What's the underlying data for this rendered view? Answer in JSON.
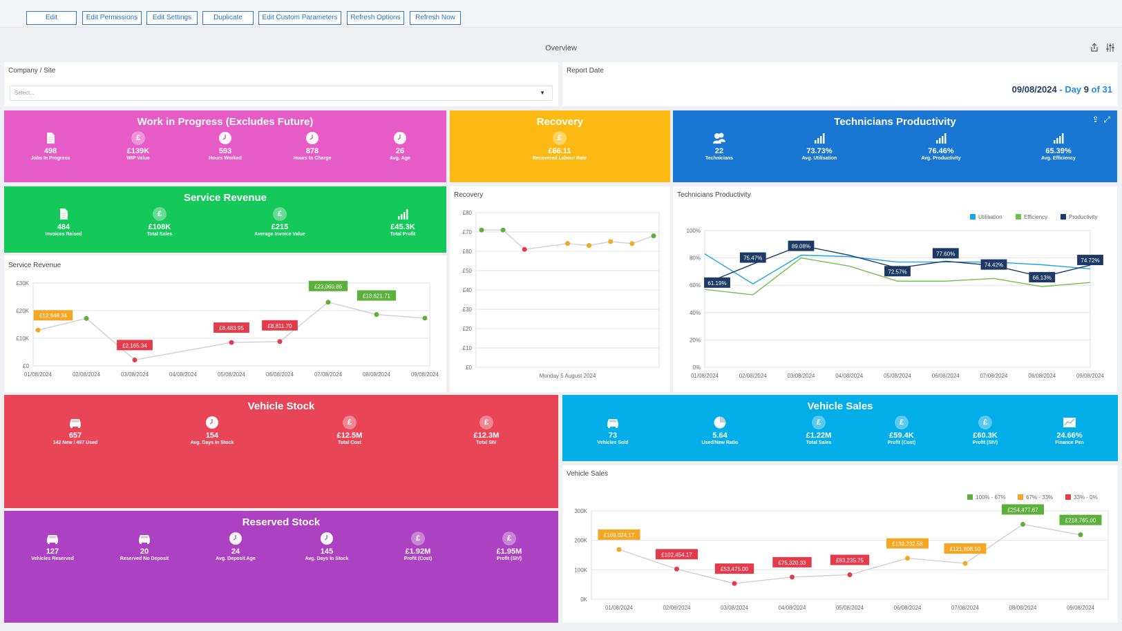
{
  "toolbar": {
    "buttons": [
      "Edit",
      "Edit Permissions",
      "Edit Settings",
      "Duplicate",
      "Edit Custom Parameters",
      "Refresh Options",
      "Refresh Now"
    ]
  },
  "overview": {
    "title": "Overview",
    "icons": [
      "share-icon",
      "settings-sliders-icon"
    ]
  },
  "filters": {
    "company_label": "Company / Site",
    "company_placeholder": "Select...",
    "report_date_label": "Report Date",
    "report_date": "09/08/2024",
    "day_word": "- Day",
    "day_num": "9",
    "of_word": "of 31"
  },
  "wip": {
    "title": "Work in Progress (Excludes Future)",
    "color": "#e65bc6",
    "stats": [
      {
        "value": "498",
        "label": "Jobs In Progress",
        "icon": "document-icon"
      },
      {
        "value": "£139K",
        "label": "WIP Value",
        "icon": "pound-icon"
      },
      {
        "value": "593",
        "label": "Hours Worked",
        "icon": "clock-icon"
      },
      {
        "value": "878",
        "label": "Hours to Charge",
        "icon": "clock-icon"
      },
      {
        "value": "26",
        "label": "Avg. Age",
        "icon": "clock-icon"
      }
    ]
  },
  "recovery": {
    "title": "Recovery",
    "color": "#fdb913",
    "stats": [
      {
        "value": "£66.11",
        "label": "Recovered Labour Rate",
        "icon": "pound-icon"
      }
    ]
  },
  "techprod": {
    "title": "Technicians Productivity",
    "color": "#1976d2",
    "stats": [
      {
        "value": "22",
        "label": "Technicians",
        "icon": "people-icon"
      },
      {
        "value": "73.73%",
        "label": "Avg. Utilisation",
        "icon": "bar-chart-icon"
      },
      {
        "value": "76.46%",
        "label": "Avg. Productivity",
        "icon": "bar-chart-icon"
      },
      {
        "value": "65.39%",
        "label": "Avg. Efficiency",
        "icon": "bar-chart-icon"
      }
    ]
  },
  "servrev": {
    "title": "Service Revenue",
    "color": "#14c85a",
    "stats": [
      {
        "value": "484",
        "label": "Invoices Raised",
        "icon": "document-icon"
      },
      {
        "value": "£108K",
        "label": "Total Sales",
        "icon": "pound-icon"
      },
      {
        "value": "£215",
        "label": "Average Invoice Value",
        "icon": "pound-icon"
      },
      {
        "value": "£45.3K",
        "label": "Total Profit",
        "icon": "bar-chart-icon"
      }
    ]
  },
  "vstock": {
    "title": "Vehicle Stock",
    "color": "#e84658",
    "stats": [
      {
        "value": "657",
        "label": "142 New / 497 Used",
        "icon": "car-icon"
      },
      {
        "value": "154",
        "label": "Avg. Days In Stock",
        "icon": "clock-icon"
      },
      {
        "value": "£12.5M",
        "label": "Total Cost",
        "icon": "pound-icon"
      },
      {
        "value": "£12.3M",
        "label": "Total SIV",
        "icon": "pound-icon"
      }
    ]
  },
  "vsales": {
    "title": "Vehicle Sales",
    "color": "#03aee8",
    "stats": [
      {
        "value": "73",
        "label": "Vehicles Sold",
        "icon": "car-icon"
      },
      {
        "value": "5.64",
        "label": "Used/New Ratio",
        "icon": "pie-icon"
      },
      {
        "value": "£1.22M",
        "label": "Total Sales",
        "icon": "pound-icon"
      },
      {
        "value": "£59.4K",
        "label": "Profit (Cost)",
        "icon": "pound-icon"
      },
      {
        "value": "£60.3K",
        "label": "Profit (SIV)",
        "icon": "pound-icon"
      },
      {
        "value": "24.66%",
        "label": "Finance Pen",
        "icon": "line-chart-icon"
      }
    ]
  },
  "rstock": {
    "title": "Reserved Stock",
    "color": "#ac41c2",
    "stats": [
      {
        "value": "127",
        "label": "Vehicles Reserved",
        "icon": "car-icon"
      },
      {
        "value": "20",
        "label": "Reserved No Deposit",
        "icon": "car-icon"
      },
      {
        "value": "24",
        "label": "Avg. Deposit Age",
        "icon": "clock-icon"
      },
      {
        "value": "145",
        "label": "Avg. Days In Stock",
        "icon": "clock-icon"
      },
      {
        "value": "£1.92M",
        "label": "Profit (Cost)",
        "icon": "pound-icon"
      },
      {
        "value": "£1.95M",
        "label": "Profit (SIV)",
        "icon": "pound-icon"
      }
    ]
  },
  "chart_data": [
    {
      "id": "service-revenue",
      "type": "line",
      "title": "Service Revenue",
      "x": [
        "01/08/2024",
        "02/08/2024",
        "03/08/2024",
        "04/08/2024",
        "05/08/2024",
        "06/08/2024",
        "07/08/2024",
        "08/08/2024",
        "09/08/2024"
      ],
      "values": [
        12948.34,
        17200,
        2165.34,
        null,
        8483.95,
        8811.7,
        23060.86,
        18621.71,
        17300
      ],
      "labels": [
        "£12,948.34",
        "",
        "£2,165.34",
        "",
        "£8,483.95",
        "£8,811.70",
        "£23,060.86",
        "£18,621.71",
        ""
      ],
      "point_colors": [
        "#f5a623",
        "#5cb13c",
        "#e23b4c",
        "",
        "#e23b4c",
        "#e23b4c",
        "#5cb13c",
        "#5cb13c",
        "#5cb13c"
      ],
      "yticks": [
        "£0",
        "£10K",
        "£20K",
        "£30K"
      ],
      "ylim": [
        0,
        30000
      ]
    },
    {
      "id": "recovery",
      "type": "line",
      "title": "Recovery",
      "xlabel": "Monday 5 August 2024",
      "values": [
        71,
        71,
        61,
        null,
        64,
        63,
        65,
        64,
        68
      ],
      "point_colors": [
        "#5cb13c",
        "#5cb13c",
        "#e23b4c",
        "",
        "#f5a623",
        "#f5a623",
        "#f5a623",
        "#f5a623",
        "#5cb13c"
      ],
      "yticks": [
        "£0",
        "£10",
        "£20",
        "£30",
        "£40",
        "£50",
        "£60",
        "£70",
        "£80"
      ],
      "ylim": [
        0,
        80
      ]
    },
    {
      "id": "technicians-productivity",
      "type": "line",
      "title": "Technicians Productivity",
      "x": [
        "01/08/2024",
        "02/08/2024",
        "03/08/2024",
        "04/08/2024",
        "05/08/2024",
        "06/08/2024",
        "07/08/2024",
        "08/08/2024",
        "09/08/2024"
      ],
      "legend": [
        "Utilisation",
        "Efficiency",
        "Productivity"
      ],
      "series": [
        {
          "name": "Utilisation",
          "color": "#1aa3e8",
          "values": [
            83,
            61,
            82,
            81,
            77,
            77,
            77,
            75,
            72
          ]
        },
        {
          "name": "Efficiency",
          "color": "#6cc24a",
          "values": [
            57,
            53,
            80,
            74,
            63,
            63,
            65,
            59,
            62
          ]
        },
        {
          "name": "Productivity",
          "color": "#1d3a66",
          "values": [
            61.19,
            75.47,
            89.08,
            82,
            72.57,
            77.6,
            74.42,
            66.13,
            74.72
          ]
        }
      ],
      "point_labels": [
        "61.19%",
        "75.47%",
        "89.08%",
        "",
        "72.57%",
        "77.60%",
        "74.42%",
        "66.13%",
        "74.72%"
      ],
      "yticks": [
        "0%",
        "20%",
        "40%",
        "60%",
        "80%",
        "100%"
      ],
      "ylim": [
        0,
        100
      ]
    },
    {
      "id": "vehicle-sales",
      "type": "line",
      "title": "Vehicle Sales",
      "x": [
        "01/08/2024",
        "02/08/2024",
        "03/08/2024",
        "04/08/2024",
        "05/08/2024",
        "06/08/2024",
        "07/08/2024",
        "08/08/2024",
        "09/08/2024"
      ],
      "legend": [
        "100% - 67%",
        "67% - 33%",
        "33% - 0%"
      ],
      "legend_colors": [
        "#5cb13c",
        "#f5a623",
        "#e23b4c"
      ],
      "values": [
        169024.17,
        102454.17,
        53475.0,
        75320.33,
        83235.75,
        139232.58,
        121808.5,
        254477.67,
        218765.0
      ],
      "labels": [
        "£169,024.17",
        "£102,454.17",
        "£53,475.00",
        "£75,320.33",
        "£83,235.75",
        "£139,232.58",
        "£121,808.50",
        "£254,477.67",
        "£218,765.00"
      ],
      "point_colors": [
        "#f5a623",
        "#e23b4c",
        "#e23b4c",
        "#e23b4c",
        "#e23b4c",
        "#f5a623",
        "#f5a623",
        "#5cb13c",
        "#5cb13c"
      ],
      "yticks": [
        "0K",
        "100K",
        "200K",
        "300K"
      ],
      "ylim": [
        0,
        300000
      ]
    }
  ]
}
